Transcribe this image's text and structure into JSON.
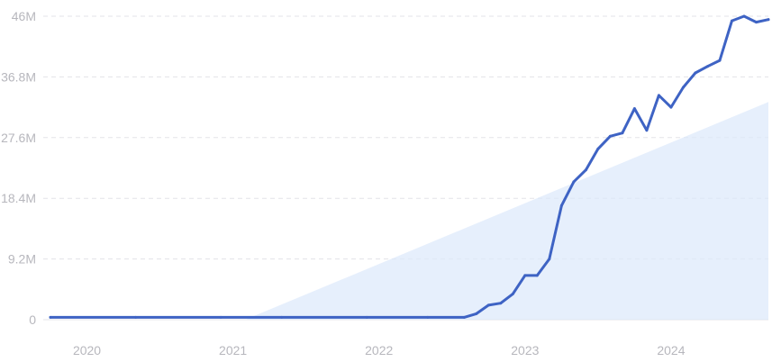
{
  "chart_data": {
    "type": "line",
    "title": "",
    "xlabel": "",
    "ylabel": "",
    "x_ticks": [
      "2020",
      "2021",
      "2022",
      "2023",
      "2024"
    ],
    "y_ticks": [
      "0",
      "9.2M",
      "18.4M",
      "27.6M",
      "36.8M",
      "46M"
    ],
    "ylim": [
      0,
      46000000
    ],
    "xlim": [
      "2019-11",
      "2024-10"
    ],
    "grid": true,
    "colors": {
      "line": "#3e63c4",
      "trend_fill": "#dce8fb"
    },
    "series": [
      {
        "x": [
          "2019-11",
          "2020-06",
          "2021-01",
          "2021-06",
          "2022-01",
          "2022-06",
          "2022-09",
          "2022-10",
          "2022-11",
          "2022-12",
          "2023-01",
          "2023-02",
          "2023-03",
          "2023-04",
          "2023-05",
          "2023-06",
          "2023-07",
          "2023-08",
          "2023-09",
          "2023-10",
          "2023-11",
          "2023-12",
          "2024-01",
          "2024-02",
          "2024-03",
          "2024-04",
          "2024-05",
          "2024-06",
          "2024-07",
          "2024-08",
          "2024-09",
          "2024-10"
        ],
        "values": [
          350000,
          350000,
          350000,
          350000,
          350000,
          350000,
          350000,
          900000,
          2200000,
          2500000,
          3900000,
          6700000,
          6700000,
          9200000,
          17300000,
          20900000,
          22700000,
          25900000,
          27800000,
          28300000,
          32000000,
          28700000,
          34000000,
          32200000,
          35200000,
          37400000,
          38400000,
          39300000,
          45300000,
          46000000,
          45100000,
          45500000
        ]
      }
    ],
    "trend": {
      "x": [
        "2021-03",
        "2024-10"
      ],
      "values": [
        0,
        33000000
      ]
    }
  }
}
